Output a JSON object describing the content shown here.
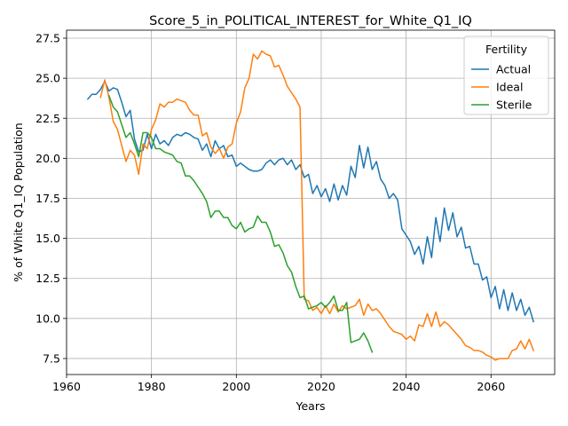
{
  "chart_data": {
    "type": "line",
    "title": "Score_5_in_POLITICAL_INTEREST_for_White_Q1_IQ",
    "xlabel": "Years",
    "ylabel": "% of White Q1_IQ Population",
    "xlim": [
      1960,
      2075
    ],
    "ylim": [
      6.5,
      28
    ],
    "xticks": [
      1960,
      1980,
      2000,
      2020,
      2040,
      2060
    ],
    "yticks": [
      7.5,
      10.0,
      12.5,
      15.0,
      17.5,
      20.0,
      22.5,
      25.0,
      27.5
    ],
    "ytick_labels": [
      "7.5",
      "10.0",
      "12.5",
      "15.0",
      "17.5",
      "20.0",
      "22.5",
      "25.0",
      "27.5"
    ],
    "grid": true,
    "legend": {
      "title": "Fertility",
      "position": "top-right"
    },
    "series": [
      {
        "name": "Actual",
        "color": "#1f77b4",
        "x": [
          1965,
          1966,
          1967,
          1968,
          1969,
          1970,
          1971,
          1972,
          1973,
          1974,
          1975,
          1976,
          1977,
          1978,
          1979,
          1980,
          1981,
          1982,
          1983,
          1984,
          1985,
          1986,
          1987,
          1988,
          1989,
          1990,
          1991,
          1992,
          1993,
          1994,
          1995,
          1996,
          1997,
          1998,
          1999,
          2000,
          2001,
          2002,
          2003,
          2004,
          2005,
          2006,
          2007,
          2008,
          2009,
          2010,
          2011,
          2012,
          2013,
          2014,
          2015,
          2016,
          2017,
          2018,
          2019,
          2020,
          2021,
          2022,
          2023,
          2024,
          2025,
          2026,
          2027,
          2028,
          2029,
          2030,
          2031,
          2032,
          2033,
          2034,
          2035,
          2036,
          2037,
          2038,
          2039,
          2040,
          2041,
          2042,
          2043,
          2044,
          2045,
          2046,
          2047,
          2048,
          2049,
          2050,
          2051,
          2052,
          2053,
          2054,
          2055,
          2056,
          2057,
          2058,
          2059,
          2060,
          2061,
          2062,
          2063,
          2064,
          2065,
          2066,
          2067,
          2068,
          2069,
          2070
        ],
        "y": [
          23.7,
          24.0,
          24.0,
          24.3,
          24.8,
          24.2,
          24.4,
          24.3,
          23.5,
          22.6,
          23.0,
          21.2,
          20.4,
          20.5,
          21.5,
          20.6,
          21.5,
          20.9,
          21.1,
          20.8,
          21.3,
          21.5,
          21.4,
          21.6,
          21.5,
          21.3,
          21.2,
          20.5,
          20.9,
          20.1,
          21.1,
          20.6,
          20.8,
          20.1,
          20.2,
          19.5,
          19.7,
          19.5,
          19.3,
          19.2,
          19.2,
          19.3,
          19.7,
          19.9,
          19.6,
          19.9,
          20.0,
          19.6,
          19.9,
          19.3,
          19.6,
          18.8,
          19.0,
          17.8,
          18.3,
          17.6,
          18.1,
          17.3,
          18.4,
          17.4,
          18.3,
          17.7,
          19.5,
          18.8,
          20.8,
          19.4,
          20.7,
          19.3,
          19.8,
          18.7,
          18.3,
          17.5,
          17.8,
          17.4,
          15.6,
          15.2,
          14.8,
          14.0,
          14.5,
          13.4,
          15.1,
          13.8,
          16.3,
          14.8,
          16.9,
          15.5,
          16.6,
          15.1,
          15.7,
          14.4,
          14.5,
          13.4,
          13.4,
          12.4,
          12.6,
          11.3,
          12.0,
          10.6,
          11.8,
          10.5,
          11.6,
          10.5,
          11.2,
          10.2,
          10.7,
          9.8
        ]
      },
      {
        "name": "Ideal",
        "color": "#ff7f0e",
        "x": [
          1968,
          1969,
          1970,
          1971,
          1972,
          1973,
          1974,
          1975,
          1976,
          1977,
          1978,
          1979,
          1980,
          1981,
          1982,
          1983,
          1984,
          1985,
          1986,
          1987,
          1988,
          1989,
          1990,
          1991,
          1992,
          1993,
          1994,
          1995,
          1996,
          1997,
          1998,
          1999,
          2000,
          2001,
          2002,
          2003,
          2004,
          2005,
          2006,
          2007,
          2008,
          2009,
          2010,
          2011,
          2012,
          2013,
          2014,
          2015,
          2016,
          2017,
          2018,
          2019,
          2020,
          2021,
          2022,
          2023,
          2024,
          2025,
          2026,
          2027,
          2028,
          2029,
          2030,
          2031,
          2032,
          2033,
          2034,
          2035,
          2036,
          2037,
          2038,
          2039,
          2040,
          2041,
          2042,
          2043,
          2044,
          2045,
          2046,
          2047,
          2048,
          2049,
          2050,
          2051,
          2052,
          2053,
          2054,
          2055,
          2056,
          2057,
          2058,
          2059,
          2060,
          2061,
          2062,
          2063,
          2064,
          2065,
          2066,
          2067,
          2068,
          2069,
          2070
        ],
        "y": [
          23.8,
          24.9,
          23.8,
          22.3,
          21.8,
          20.8,
          19.8,
          20.5,
          20.2,
          19.0,
          20.9,
          20.6,
          21.8,
          22.4,
          23.4,
          23.2,
          23.5,
          23.5,
          23.7,
          23.6,
          23.5,
          23.0,
          22.7,
          22.7,
          21.4,
          21.6,
          20.7,
          20.3,
          20.6,
          20.0,
          20.7,
          20.9,
          22.2,
          22.9,
          24.4,
          25.0,
          26.5,
          26.2,
          26.7,
          26.5,
          26.4,
          25.7,
          25.8,
          25.2,
          24.5,
          24.1,
          23.7,
          23.2,
          11.2,
          11.1,
          10.5,
          10.7,
          10.3,
          10.8,
          10.3,
          10.9,
          10.4,
          10.8,
          10.6,
          10.7,
          10.8,
          11.2,
          10.2,
          10.9,
          10.5,
          10.6,
          10.3,
          9.9,
          9.5,
          9.2,
          9.1,
          9.0,
          8.7,
          8.9,
          8.6,
          9.6,
          9.5,
          10.3,
          9.5,
          10.4,
          9.5,
          9.8,
          9.6,
          9.3,
          9.0,
          8.7,
          8.3,
          8.2,
          8.0,
          8.0,
          7.9,
          7.7,
          7.6,
          7.4,
          7.5,
          7.5,
          7.5,
          8.0,
          8.1,
          8.6,
          8.1,
          8.7,
          8.0
        ]
      },
      {
        "name": "Sterile",
        "color": "#2ca02c",
        "x": [
          1970,
          1971,
          1972,
          1973,
          1974,
          1975,
          1976,
          1977,
          1978,
          1979,
          1980,
          1981,
          1982,
          1983,
          1984,
          1985,
          1986,
          1987,
          1988,
          1989,
          1990,
          1991,
          1992,
          1993,
          1994,
          1995,
          1996,
          1997,
          1998,
          1999,
          2000,
          2001,
          2002,
          2003,
          2004,
          2005,
          2006,
          2007,
          2008,
          2009,
          2010,
          2011,
          2012,
          2013,
          2014,
          2015,
          2016,
          2017,
          2018,
          2019,
          2020,
          2021,
          2022,
          2023,
          2024,
          2025,
          2026,
          2027,
          2028,
          2029,
          2030,
          2031,
          2032
        ],
        "y": [
          23.9,
          23.2,
          22.9,
          22.1,
          21.3,
          21.6,
          20.9,
          20.1,
          21.6,
          21.6,
          21.3,
          20.6,
          20.6,
          20.4,
          20.3,
          20.2,
          19.8,
          19.7,
          18.9,
          18.9,
          18.6,
          18.2,
          17.8,
          17.3,
          16.3,
          16.7,
          16.7,
          16.3,
          16.3,
          15.8,
          15.6,
          16.0,
          15.4,
          15.6,
          15.7,
          16.4,
          16.0,
          16.0,
          15.4,
          14.5,
          14.6,
          14.1,
          13.3,
          12.9,
          12.0,
          11.3,
          11.4,
          10.6,
          10.7,
          10.8,
          11.0,
          10.7,
          11.0,
          11.4,
          10.5,
          10.5,
          11.0,
          8.5,
          8.6,
          8.7,
          9.1,
          8.6,
          7.9
        ]
      }
    ]
  }
}
